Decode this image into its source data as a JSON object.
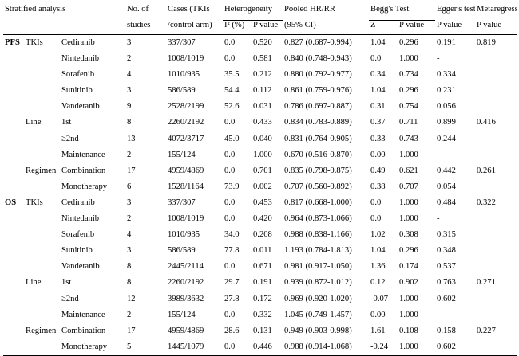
{
  "header": {
    "stratified": "Stratified analysis",
    "studies": [
      "No. of",
      "studies"
    ],
    "cases": [
      "Cases (TKIs",
      "/control arm)"
    ],
    "hetero": "Heterogeneity",
    "i2": "I² (%)",
    "pvalue": "P value",
    "pooled": [
      "Pooled HR/RR",
      "(95% CI)"
    ],
    "begg": "Begg's Test",
    "z": "Z",
    "egger": [
      "Egger's test",
      "P value"
    ],
    "meta": [
      "Metaregression",
      "P value"
    ]
  },
  "rows": [
    {
      "outcome": "PFS",
      "group": "TKIs",
      "sub": "Cediranib",
      "n": "3",
      "cases": "337/307",
      "i2": "0.0",
      "hp": "0.520",
      "hr": "0.827 (0.687-0.994)",
      "z": "1.04",
      "bp": "0.296",
      "egger": "0.191",
      "meta": "0.819"
    },
    {
      "outcome": "",
      "group": "",
      "sub": "Nintedanib",
      "n": "2",
      "cases": "1008/1019",
      "i2": "0.0",
      "hp": "0.581",
      "hr": "0.840 (0.748-0.943)",
      "z": "0.0",
      "bp": "1.000",
      "egger": "-",
      "meta": ""
    },
    {
      "outcome": "",
      "group": "",
      "sub": "Sorafenib",
      "n": "4",
      "cases": "1010/935",
      "i2": "35.5",
      "hp": "0.212",
      "hr": "0.880 (0.792-0.977)",
      "z": "0.34",
      "bp": "0.734",
      "egger": "0.334",
      "meta": ""
    },
    {
      "outcome": "",
      "group": "",
      "sub": "Sunitinib",
      "n": "3",
      "cases": "586/589",
      "i2": "54.4",
      "hp": "0.112",
      "hr": "0.861 (0.759-0.976)",
      "z": "1.04",
      "bp": "0.296",
      "egger": "0.231",
      "meta": ""
    },
    {
      "outcome": "",
      "group": "",
      "sub": "Vandetanib",
      "n": "9",
      "cases": "2528/2199",
      "i2": "52.6",
      "hp": "0.031",
      "hr": "0.786 (0.697-0.887)",
      "z": "0.31",
      "bp": "0.754",
      "egger": "0.056",
      "meta": ""
    },
    {
      "outcome": "",
      "group": "Line",
      "sub": "1st",
      "n": "8",
      "cases": "2260/2192",
      "i2": "0.0",
      "hp": "0.433",
      "hr": "0.834 (0.783-0.889)",
      "z": "0.37",
      "bp": "0.711",
      "egger": "0.899",
      "meta": "0.416"
    },
    {
      "outcome": "",
      "group": "",
      "sub": "≥2nd",
      "n": "13",
      "cases": "4072/3717",
      "i2": "45.0",
      "hp": "0.040",
      "hr": "0.831 (0.764-0.905)",
      "z": "0.33",
      "bp": "0.743",
      "egger": "0.244",
      "meta": ""
    },
    {
      "outcome": "",
      "group": "",
      "sub": "Maintenance",
      "n": "2",
      "cases": "155/124",
      "i2": "0.0",
      "hp": "1.000",
      "hr": "0.670 (0.516-0.870)",
      "z": "0.00",
      "bp": "1.000",
      "egger": "-",
      "meta": ""
    },
    {
      "outcome": "",
      "group": "Regimen",
      "sub": "Combination",
      "n": "17",
      "cases": "4959/4869",
      "i2": "0.0",
      "hp": "0.701",
      "hr": "0.835 (0.798-0.875)",
      "z": "0.49",
      "bp": "0.621",
      "egger": "0.442",
      "meta": "0.261"
    },
    {
      "outcome": "",
      "group": "",
      "sub": "Monotherapy",
      "n": "6",
      "cases": "1528/1164",
      "i2": "73.9",
      "hp": "0.002",
      "hr": "0.707 (0.560-0.892)",
      "z": "0.38",
      "bp": "0.707",
      "egger": "0.054",
      "meta": ""
    },
    {
      "outcome": "OS",
      "group": "TKIs",
      "sub": "Cediranib",
      "n": "3",
      "cases": "337/307",
      "i2": "0.0",
      "hp": "0.453",
      "hr": "0.817 (0.668-1.000)",
      "z": "0.0",
      "bp": "1.000",
      "egger": "0.484",
      "meta": "0.322"
    },
    {
      "outcome": "",
      "group": "",
      "sub": "Nintedanib",
      "n": "2",
      "cases": "1008/1019",
      "i2": "0.0",
      "hp": "0.420",
      "hr": "0.964 (0.873-1.066)",
      "z": "0.0",
      "bp": "1.000",
      "egger": "-",
      "meta": ""
    },
    {
      "outcome": "",
      "group": "",
      "sub": "Sorafenib",
      "n": "4",
      "cases": "1010/935",
      "i2": "34.0",
      "hp": "0.208",
      "hr": "0.988 (0.838-1.166)",
      "z": "1.02",
      "bp": "0.308",
      "egger": "0.315",
      "meta": ""
    },
    {
      "outcome": "",
      "group": "",
      "sub": "Sunitinib",
      "n": "3",
      "cases": "586/589",
      "i2": "77.8",
      "hp": "0.011",
      "hr": "1.193 (0.784-1.813)",
      "z": "1.04",
      "bp": "0.296",
      "egger": "0.348",
      "meta": ""
    },
    {
      "outcome": "",
      "group": "",
      "sub": "Vandetanib",
      "n": "8",
      "cases": "2445/2114",
      "i2": "0.0",
      "hp": "0.671",
      "hr": "0.981 (0.917-1.050)",
      "z": "1.36",
      "bp": "0.174",
      "egger": "0.537",
      "meta": ""
    },
    {
      "outcome": "",
      "group": "Line",
      "sub": "1st",
      "n": "8",
      "cases": "2260/2192",
      "i2": "29.7",
      "hp": "0.191",
      "hr": "0.939 (0.872-1.012)",
      "z": "0.12",
      "bp": "0.902",
      "egger": "0.763",
      "meta": "0.271"
    },
    {
      "outcome": "",
      "group": "",
      "sub": "≥2nd",
      "n": "12",
      "cases": "3989/3632",
      "i2": "27.8",
      "hp": "0.172",
      "hr": "0.969 (0.920-1.020)",
      "z": "-0.07",
      "bp": "1.000",
      "egger": "0.602",
      "meta": ""
    },
    {
      "outcome": "",
      "group": "",
      "sub": "Maintenance",
      "n": "2",
      "cases": "155/124",
      "i2": "0.0",
      "hp": "0.332",
      "hr": "1.045 (0.749-1.457)",
      "z": "0.00",
      "bp": "1.000",
      "egger": "-",
      "meta": ""
    },
    {
      "outcome": "",
      "group": "Regimen",
      "sub": "Combination",
      "n": "17",
      "cases": "4959/4869",
      "i2": "28.6",
      "hp": "0.131",
      "hr": "0.949 (0.903-0.998)",
      "z": "1.61",
      "bp": "0.108",
      "egger": "0.158",
      "meta": "0.227"
    },
    {
      "outcome": "",
      "group": "",
      "sub": "Monotherapy",
      "n": "5",
      "cases": "1445/1079",
      "i2": "0.0",
      "hp": "0.446",
      "hr": "0.988 (0.914-1.068)",
      "z": "-0.24",
      "bp": "1.000",
      "egger": "0.602",
      "meta": ""
    }
  ]
}
